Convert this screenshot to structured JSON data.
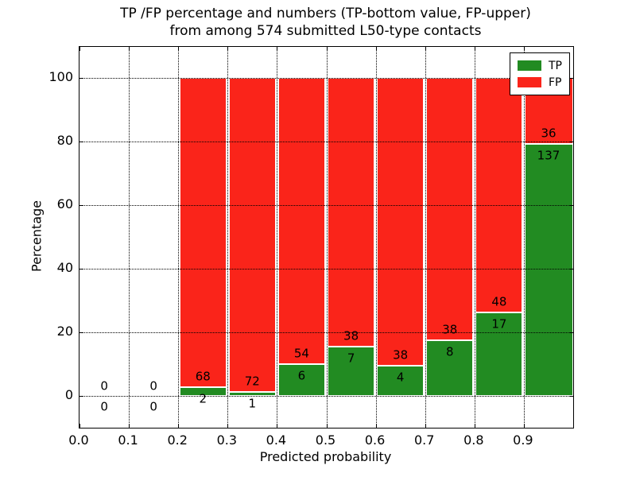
{
  "figure": {
    "background": "#ffffff"
  },
  "chart_data": {
    "type": "bar",
    "stacked": true,
    "title": "TP /FP percentage and numbers (TP-bottom value, FP-upper) from among 574 submitted L50-type contacts",
    "title_lines": [
      "TP /FP percentage and numbers (TP-bottom value, FP-upper)",
      "from among 574 submitted L50-type contacts"
    ],
    "xlabel": "Predicted probability",
    "ylabel": "Percentage",
    "total_contacts": 574,
    "x_tick_labels": [
      "0.0",
      "0.1",
      "0.2",
      "0.3",
      "0.4",
      "0.5",
      "0.6",
      "0.7",
      "0.8",
      "0.9"
    ],
    "y_ticks": [
      0,
      20,
      40,
      60,
      80,
      100
    ],
    "y_tick_labels": [
      "0",
      "20",
      "40",
      "60",
      "80",
      "100"
    ],
    "xlim": [
      0.0,
      1.0
    ],
    "ylim": [
      -10,
      110
    ],
    "bin_width": 0.1,
    "grid": "dotted",
    "legend_position": "upper right",
    "legend": [
      {
        "label": "TP",
        "color": "#228b22"
      },
      {
        "label": "FP",
        "color": "#fa241a"
      }
    ],
    "bins": [
      {
        "x_start": 0.0,
        "tp": 0,
        "fp": 0
      },
      {
        "x_start": 0.1,
        "tp": 0,
        "fp": 0
      },
      {
        "x_start": 0.2,
        "tp": 2,
        "fp": 68
      },
      {
        "x_start": 0.3,
        "tp": 1,
        "fp": 72
      },
      {
        "x_start": 0.4,
        "tp": 6,
        "fp": 54
      },
      {
        "x_start": 0.5,
        "tp": 7,
        "fp": 38
      },
      {
        "x_start": 0.6,
        "tp": 4,
        "fp": 38
      },
      {
        "x_start": 0.7,
        "tp": 8,
        "fp": 38
      },
      {
        "x_start": 0.8,
        "tp": 17,
        "fp": 48
      },
      {
        "x_start": 0.9,
        "tp": 137,
        "fp": 36
      }
    ],
    "series": [
      {
        "name": "TP",
        "values": [
          0,
          0,
          2,
          1,
          6,
          7,
          4,
          8,
          17,
          137
        ]
      },
      {
        "name": "FP",
        "values": [
          0,
          0,
          68,
          72,
          54,
          38,
          38,
          38,
          48,
          36
        ]
      }
    ]
  }
}
